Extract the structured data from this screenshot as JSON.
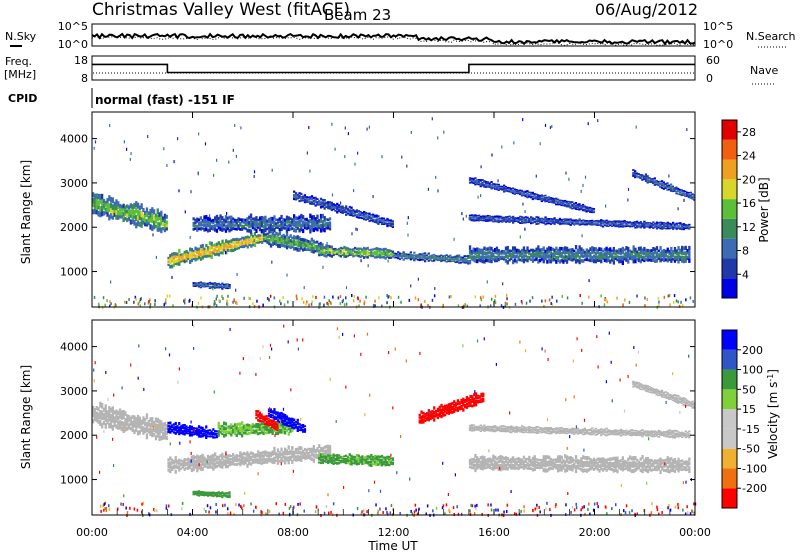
{
  "header": {
    "station": "Christmas Valley West (fitACF)",
    "beam": "Beam 23",
    "date": "06/Aug/2012"
  },
  "noise_panel": {
    "left_label": "N.Sky",
    "right_label": "N.Search",
    "left_ticks": [
      "10^5",
      "10^0"
    ],
    "right_ticks": [
      "10^5",
      "10^0"
    ]
  },
  "freq_panel": {
    "left_label_1": "Freq.",
    "left_label_2": "[MHz]",
    "right_label": "Nave",
    "left_ticks": [
      "18",
      "8"
    ],
    "right_ticks": [
      "60",
      "0"
    ]
  },
  "cpid": {
    "label": "CPID",
    "value": "normal (fast) -151 IF"
  },
  "colors": {
    "power_scale": [
      "#0000e6",
      "#1f3aa8",
      "#3d6bb3",
      "#3a8a5a",
      "#5bbf3a",
      "#d9d62b",
      "#f0a020",
      "#f06010",
      "#e00000"
    ],
    "velocity_scale": [
      "#0000ff",
      "#2f55c8",
      "#3a9a3a",
      "#7fd03a",
      "#c8c8c8",
      "#c8c8c8",
      "#f0b030",
      "#f07010",
      "#ff0000"
    ],
    "ground_scatter": "#b4b4b4"
  },
  "chart_data": [
    {
      "type": "heatmap",
      "title": "",
      "quantity": "Power",
      "xlabel": "Time UT",
      "ylabel": "Slant Range [km]",
      "xlim": [
        "00:00",
        "24:00"
      ],
      "ylim": [
        200,
        4600
      ],
      "x_ticks": [
        "00:00",
        "04:00",
        "08:00",
        "12:00",
        "16:00",
        "20:00",
        "00:00"
      ],
      "y_ticks": [
        1000,
        2000,
        3000,
        4000
      ],
      "colorbar": {
        "label": "Power [dB]",
        "ticks": [
          4,
          8,
          12,
          16,
          20,
          24,
          28
        ],
        "range": [
          0,
          30
        ]
      },
      "features": [
        {
          "t0": 0.0,
          "t1": 3.0,
          "r_start": 2500,
          "r_end": 2050,
          "width": 420,
          "power": 18
        },
        {
          "t0": 3.0,
          "t1": 6.8,
          "r_start": 1220,
          "r_end": 1750,
          "width": 280,
          "power": 24
        },
        {
          "t0": 6.8,
          "t1": 9.2,
          "r_start": 1750,
          "r_end": 1500,
          "width": 300,
          "power": 16
        },
        {
          "t0": 9.0,
          "t1": 12.0,
          "r_start": 1450,
          "r_end": 1380,
          "width": 220,
          "power": 18
        },
        {
          "t0": 12.0,
          "t1": 15.0,
          "r_start": 1350,
          "r_end": 1250,
          "width": 160,
          "power": 12
        },
        {
          "t0": 4.0,
          "t1": 9.5,
          "r_start": 2050,
          "r_end": 2050,
          "width": 320,
          "power": 10
        },
        {
          "t0": 8.0,
          "t1": 12.0,
          "r_start": 2700,
          "r_end": 2050,
          "width": 180,
          "power": 8
        },
        {
          "t0": 15.0,
          "t1": 23.8,
          "r_start": 1350,
          "r_end": 1350,
          "width": 320,
          "power": 12
        },
        {
          "t0": 15.0,
          "t1": 23.8,
          "r_start": 2200,
          "r_end": 2000,
          "width": 140,
          "power": 8
        },
        {
          "t0": 15.0,
          "t1": 20.0,
          "r_start": 3050,
          "r_end": 2350,
          "width": 140,
          "power": 8
        },
        {
          "t0": 21.5,
          "t1": 24.0,
          "r_start": 3200,
          "r_end": 2650,
          "width": 150,
          "power": 10
        },
        {
          "t0": 4.0,
          "t1": 5.5,
          "r_start": 700,
          "r_end": 650,
          "width": 120,
          "power": 10
        }
      ]
    },
    {
      "type": "heatmap",
      "title": "",
      "quantity": "Velocity",
      "xlabel": "Time UT",
      "ylabel": "Slant Range [km]",
      "xlim": [
        "00:00",
        "24:00"
      ],
      "ylim": [
        200,
        4600
      ],
      "x_ticks": [
        "00:00",
        "04:00",
        "08:00",
        "12:00",
        "16:00",
        "20:00",
        "00:00"
      ],
      "y_ticks": [
        1000,
        2000,
        3000,
        4000
      ],
      "colorbar": {
        "label": "Velocity [m s^-1]",
        "ticks": [
          200,
          100,
          50,
          15,
          -15,
          -50,
          -100,
          -200
        ],
        "range": [
          -250,
          250
        ]
      },
      "features": [
        {
          "t0": 0.0,
          "t1": 3.0,
          "r_start": 2450,
          "r_end": 2050,
          "width": 420,
          "velocity": 0
        },
        {
          "t0": 3.0,
          "t1": 5.0,
          "r_start": 2150,
          "r_end": 2000,
          "width": 220,
          "velocity": 220
        },
        {
          "t0": 3.0,
          "t1": 9.5,
          "r_start": 1300,
          "r_end": 1600,
          "width": 300,
          "velocity": 0
        },
        {
          "t0": 5.0,
          "t1": 8.0,
          "r_start": 2100,
          "r_end": 2150,
          "width": 260,
          "velocity": 30
        },
        {
          "t0": 7.0,
          "t1": 8.5,
          "r_start": 2500,
          "r_end": 2100,
          "width": 220,
          "velocity": 200
        },
        {
          "t0": 6.5,
          "t1": 7.4,
          "r_start": 2450,
          "r_end": 2150,
          "width": 200,
          "velocity": -200
        },
        {
          "t0": 9.0,
          "t1": 12.0,
          "r_start": 1450,
          "r_end": 1400,
          "width": 220,
          "velocity": 40
        },
        {
          "t0": 13.0,
          "t1": 15.6,
          "r_start": 2350,
          "r_end": 2850,
          "width": 260,
          "velocity": -220
        },
        {
          "t0": 15.0,
          "t1": 23.8,
          "r_start": 1350,
          "r_end": 1300,
          "width": 300,
          "velocity": 0
        },
        {
          "t0": 15.0,
          "t1": 23.8,
          "r_start": 2150,
          "r_end": 2000,
          "width": 140,
          "velocity": 0
        },
        {
          "t0": 21.5,
          "t1": 24.0,
          "r_start": 3150,
          "r_end": 2650,
          "width": 150,
          "velocity": 0
        },
        {
          "t0": 4.0,
          "t1": 5.5,
          "r_start": 680,
          "r_end": 640,
          "width": 120,
          "velocity": 50
        }
      ]
    }
  ]
}
